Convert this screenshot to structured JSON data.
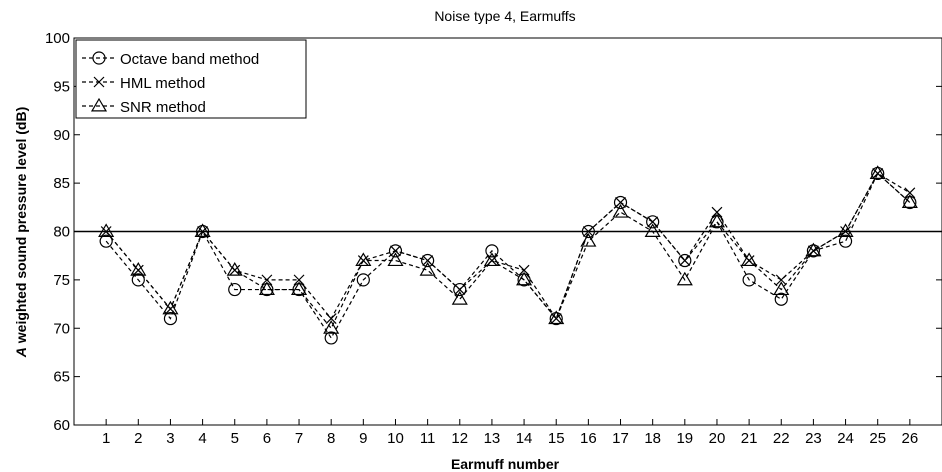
{
  "chart_data": {
    "type": "line",
    "title": "Noise type 4, Earmuffs",
    "xlabel": "Earmuff number",
    "ylabel_italic": "A",
    "ylabel_rest": " weighted sound pressure level (dB)",
    "xlim": [
      0,
      27
    ],
    "ylim": [
      60,
      100
    ],
    "x": [
      1,
      2,
      3,
      4,
      5,
      6,
      7,
      8,
      9,
      10,
      11,
      12,
      13,
      14,
      15,
      16,
      17,
      18,
      19,
      20,
      21,
      22,
      23,
      24,
      25,
      26
    ],
    "x_tick_labels": [
      "1",
      "2",
      "3",
      "4",
      "5",
      "6",
      "7",
      "8",
      "9",
      "10",
      "11",
      "12",
      "13",
      "14",
      "15",
      "16",
      "17",
      "18",
      "19",
      "20",
      "21",
      "22",
      "23",
      "24",
      "25",
      "26"
    ],
    "y_ticks": [
      60,
      65,
      70,
      75,
      80,
      85,
      90,
      95,
      100
    ],
    "y_tick_labels": [
      "60",
      "65",
      "70",
      "75",
      "80",
      "85",
      "90",
      "95",
      "100"
    ],
    "reference_line": 80,
    "legend_position": "top-left",
    "grid": false,
    "series": [
      {
        "name": "Octave band method",
        "marker": "circle",
        "values": [
          79,
          75,
          71,
          80,
          74,
          74,
          74,
          69,
          75,
          78,
          77,
          74,
          78,
          75,
          71,
          80,
          83,
          81,
          77,
          81,
          75,
          73,
          78,
          79,
          86,
          83
        ]
      },
      {
        "name": "HML method",
        "marker": "x",
        "values": [
          80,
          76,
          72,
          80,
          76,
          75,
          75,
          71,
          77,
          78,
          77,
          74,
          77,
          76,
          71,
          80,
          83,
          81,
          77,
          82,
          77,
          75,
          78,
          80,
          86,
          84
        ]
      },
      {
        "name": "SNR method",
        "marker": "triangle",
        "values": [
          80,
          76,
          72,
          80,
          76,
          74,
          74,
          70,
          77,
          77,
          76,
          73,
          77,
          75,
          71,
          79,
          82,
          80,
          75,
          81,
          77,
          74,
          78,
          80,
          86,
          83
        ]
      }
    ]
  }
}
